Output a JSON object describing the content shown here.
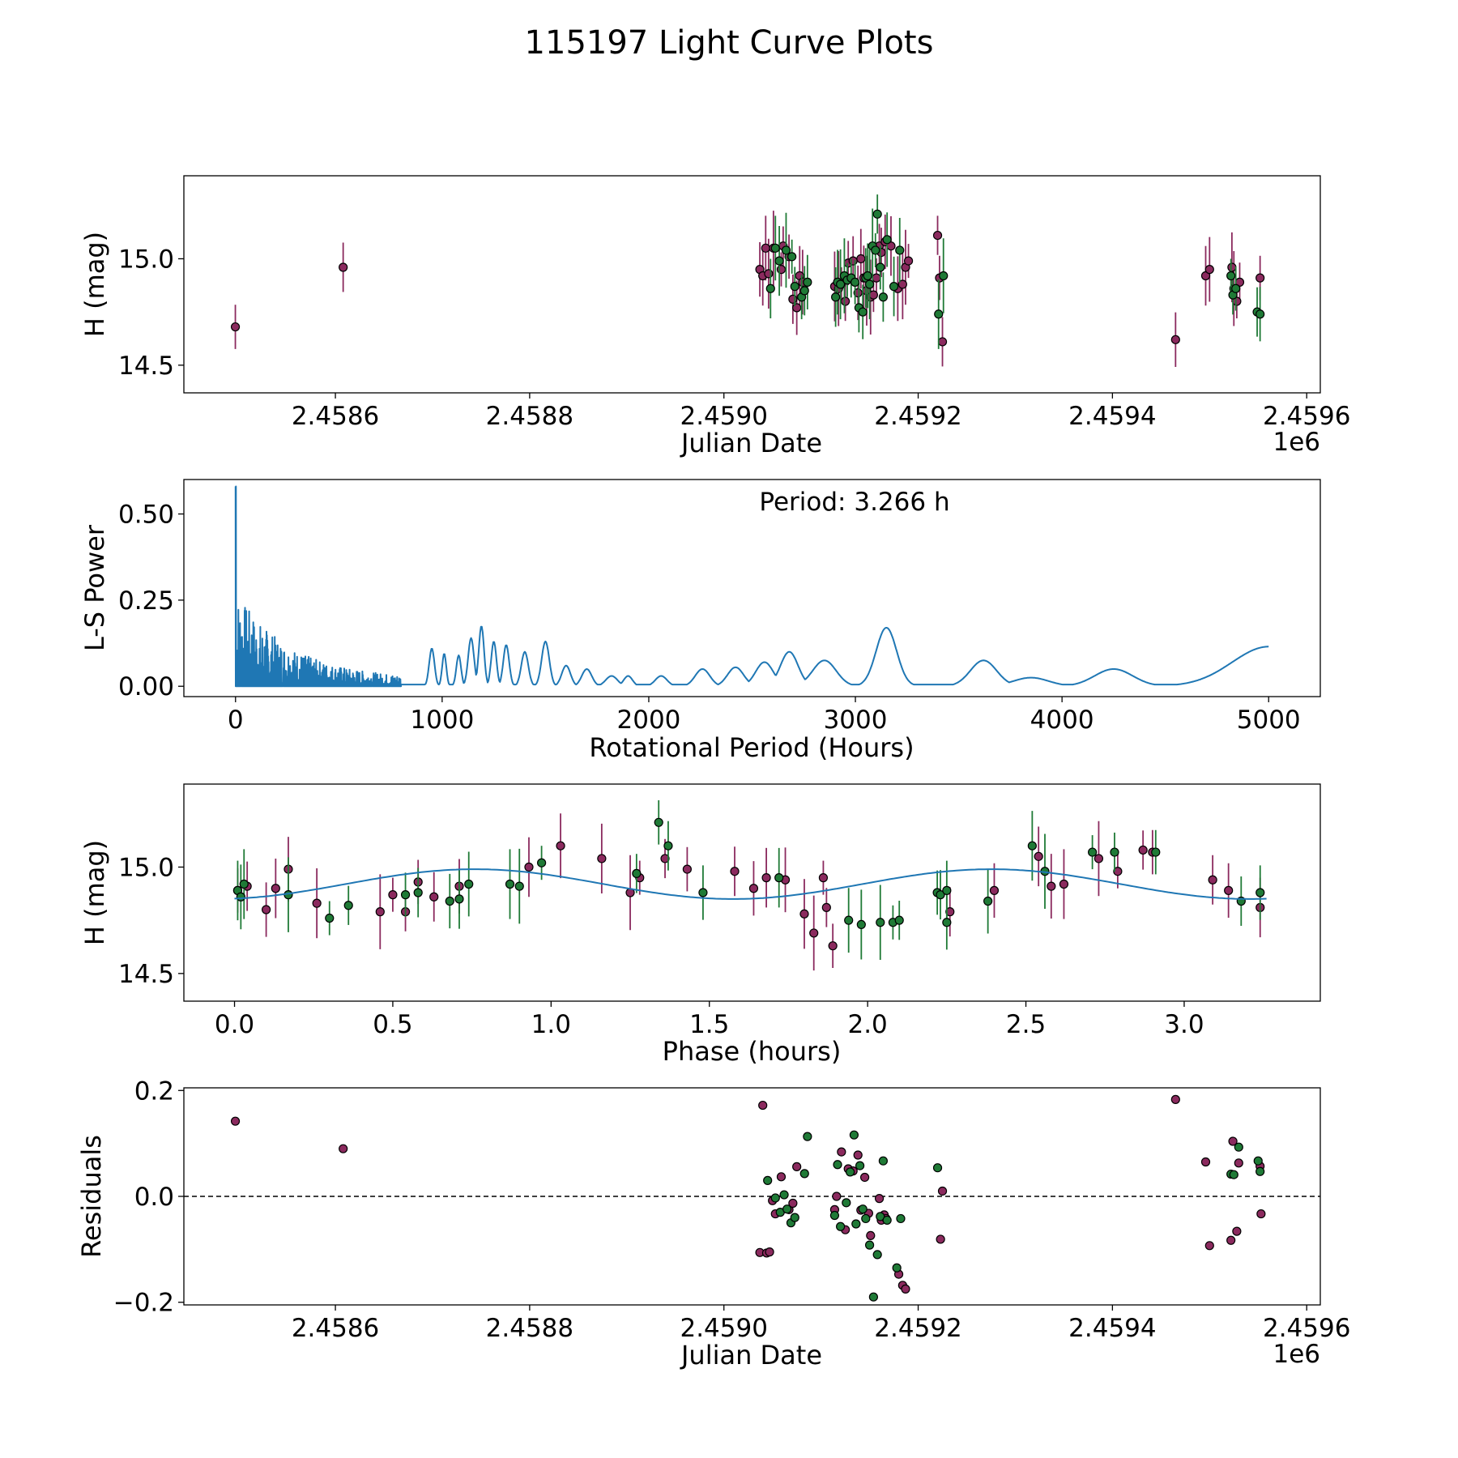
{
  "title": "115197 Light Curve Plots",
  "colors": {
    "class_a": "#8b2a5e",
    "class_b": "#1f7a36",
    "model": "#1f77b4",
    "residual_zero_line": "#000000"
  },
  "chart_data": [
    {
      "id": "lightcurve",
      "type": "scatter",
      "xlabel": "Julian Date",
      "ylabel": "H (mag)",
      "x_offset_label": "1e6",
      "xlim": [
        2458444,
        2459614
      ],
      "ylim": [
        14.37,
        15.39
      ],
      "xticks": [
        2458600,
        2458800,
        2459000,
        2459200,
        2459400,
        2459600
      ],
      "xtick_labels": [
        "2.4586",
        "2.4588",
        "2.4590",
        "2.4592",
        "2.4594",
        "2.4596"
      ],
      "yticks": [
        14.5,
        15.0
      ],
      "ytick_labels": [
        "14.5",
        "15.0"
      ],
      "series": [
        {
          "class": "a",
          "x": [
            2458497,
            2458608,
            2459037,
            2459040,
            2459043,
            2459046,
            2459051,
            2459059,
            2459061,
            2459067,
            2459071,
            2459075,
            2459078,
            2459081,
            2459114,
            2459118,
            2459121,
            2459125,
            2459128,
            2459133,
            2459138,
            2459141,
            2459144,
            2459147,
            2459151,
            2459154,
            2459157,
            2459160,
            2459162,
            2459166,
            2459172,
            2459179,
            2459184,
            2459187,
            2459190,
            2459220,
            2459222,
            2459225,
            2459465,
            2459496,
            2459500,
            2459523,
            2459525,
            2459528,
            2459531,
            2459552
          ],
          "y": [
            14.68,
            14.96,
            14.95,
            14.92,
            15.05,
            14.93,
            15.05,
            14.95,
            15.06,
            15.01,
            14.81,
            14.77,
            14.92,
            14.89,
            14.87,
            14.86,
            14.88,
            14.8,
            14.98,
            14.99,
            14.84,
            15.0,
            14.91,
            14.85,
            14.82,
            14.83,
            14.91,
            15.06,
            15.03,
            15.08,
            15.06,
            14.86,
            14.88,
            14.96,
            14.99,
            15.11,
            14.91,
            14.61,
            14.62,
            14.92,
            14.95,
            14.96,
            14.86,
            14.8,
            14.89,
            14.91
          ]
        },
        {
          "class": "b",
          "x": [
            2459048,
            2459053,
            2459057,
            2459064,
            2459070,
            2459073,
            2459080,
            2459083,
            2459086,
            2459115,
            2459117,
            2459120,
            2459124,
            2459127,
            2459131,
            2459135,
            2459139,
            2459143,
            2459146,
            2459148,
            2459150,
            2459153,
            2459156,
            2459158,
            2459161,
            2459164,
            2459168,
            2459175,
            2459181,
            2459221,
            2459226,
            2459522,
            2459524,
            2459527,
            2459549,
            2459552
          ],
          "y": [
            14.86,
            15.05,
            14.99,
            15.04,
            15.01,
            14.87,
            14.82,
            14.85,
            14.89,
            14.82,
            14.89,
            14.88,
            14.92,
            14.9,
            14.91,
            14.89,
            14.77,
            14.75,
            14.91,
            14.92,
            14.88,
            15.06,
            15.04,
            15.21,
            14.96,
            14.82,
            15.09,
            14.87,
            15.04,
            14.74,
            14.92,
            14.92,
            14.83,
            14.86,
            14.75,
            14.74
          ]
        }
      ]
    },
    {
      "id": "periodogram",
      "type": "line",
      "xlabel": "Rotational Period (Hours)",
      "ylabel": "L-S Power",
      "annotation": "Period: 3.266 h",
      "xlim": [
        -250,
        5250
      ],
      "ylim": [
        -0.03,
        0.6
      ],
      "xticks": [
        0,
        1000,
        2000,
        3000,
        4000,
        5000
      ],
      "xtick_labels": [
        "0",
        "1000",
        "2000",
        "3000",
        "4000",
        "5000"
      ],
      "yticks": [
        0.0,
        0.25,
        0.5
      ],
      "ytick_labels": [
        "0.00",
        "0.25",
        "0.50"
      ],
      "peak_power": 0.58,
      "peaks": [
        [
          3.266,
          0.58
        ],
        [
          3150,
          0.17
        ],
        [
          3620,
          0.075
        ],
        [
          4250,
          0.05
        ],
        [
          5000,
          0.115
        ]
      ]
    },
    {
      "id": "phased",
      "type": "scatter",
      "xlabel": "Phase (hours)",
      "ylabel": "H (mag)",
      "xlim": [
        -0.16,
        3.43
      ],
      "ylim": [
        14.37,
        15.39
      ],
      "xticks": [
        0.0,
        0.5,
        1.0,
        1.5,
        2.0,
        2.5,
        3.0
      ],
      "xtick_labels": [
        "0.0",
        "0.5",
        "1.0",
        "1.5",
        "2.0",
        "2.5",
        "3.0"
      ],
      "yticks": [
        14.5,
        15.0
      ],
      "ytick_labels": [
        "14.5",
        "15.0"
      ],
      "model": {
        "type": "sine",
        "period": 3.266,
        "mean": 14.92,
        "amplitude": 0.07
      },
      "series": [
        {
          "class": "a",
          "x": [
            0.01,
            0.04,
            0.1,
            0.13,
            0.17,
            0.26,
            0.46,
            0.5,
            0.54,
            0.58,
            0.63,
            0.71,
            0.93,
            1.03,
            1.16,
            1.25,
            1.28,
            1.36,
            1.43,
            1.58,
            1.64,
            1.68,
            1.74,
            1.8,
            1.83,
            1.86,
            1.87,
            1.89,
            2.26,
            2.4,
            2.54,
            2.58,
            2.62,
            2.73,
            2.79,
            2.87,
            2.9,
            3.09,
            3.14,
            3.24
          ],
          "y": [
            14.89,
            14.91,
            14.8,
            14.9,
            14.99,
            14.83,
            14.79,
            14.87,
            14.79,
            14.93,
            14.86,
            14.91,
            15.0,
            15.1,
            15.04,
            14.88,
            14.95,
            15.04,
            14.99,
            14.98,
            14.9,
            14.95,
            14.94,
            14.78,
            14.69,
            14.95,
            14.81,
            14.63,
            14.79,
            14.89,
            15.05,
            14.91,
            14.92,
            15.04,
            14.98,
            15.08,
            15.07,
            14.94,
            14.89,
            14.81
          ]
        },
        {
          "class": "b",
          "x": [
            0.01,
            0.02,
            0.03,
            0.17,
            0.3,
            0.36,
            0.54,
            0.58,
            0.68,
            0.71,
            0.74,
            0.87,
            0.9,
            0.97,
            1.27,
            1.34,
            1.37,
            1.48,
            1.72,
            1.94,
            1.98,
            2.04,
            2.08,
            2.1,
            2.22,
            2.23,
            2.25,
            2.25,
            2.38,
            2.52,
            2.56,
            2.71,
            2.78,
            2.91,
            3.18,
            3.24
          ],
          "y": [
            14.89,
            14.86,
            14.92,
            14.87,
            14.76,
            14.82,
            14.87,
            14.88,
            14.84,
            14.85,
            14.92,
            14.92,
            14.91,
            15.02,
            14.97,
            15.21,
            15.1,
            14.88,
            14.95,
            14.75,
            14.73,
            14.74,
            14.74,
            14.75,
            14.88,
            14.87,
            14.74,
            14.89,
            14.84,
            15.1,
            14.98,
            15.07,
            15.07,
            15.07,
            14.84,
            14.88
          ]
        }
      ]
    },
    {
      "id": "residuals",
      "type": "scatter",
      "xlabel": "Julian Date",
      "ylabel": "Residuals",
      "x_offset_label": "1e6",
      "xlim": [
        2458444,
        2459614
      ],
      "ylim": [
        -0.205,
        0.205
      ],
      "xticks": [
        2458600,
        2458800,
        2459000,
        2459200,
        2459400,
        2459600
      ],
      "xtick_labels": [
        "2.4586",
        "2.4588",
        "2.4590",
        "2.4592",
        "2.4594",
        "2.4596"
      ],
      "yticks": [
        -0.2,
        0.0,
        0.2
      ],
      "ytick_labels": [
        "−0.2",
        "0.0",
        "0.2"
      ],
      "zero_line": 0.0,
      "series": [
        {
          "class": "a",
          "x": [
            2458497,
            2458608,
            2459037,
            2459040,
            2459044,
            2459047,
            2459050,
            2459053,
            2459059,
            2459067,
            2459071,
            2459075,
            2459114,
            2459116,
            2459121,
            2459125,
            2459128,
            2459133,
            2459138,
            2459141,
            2459145,
            2459149,
            2459151,
            2459160,
            2459162,
            2459165,
            2459167,
            2459180,
            2459184,
            2459187,
            2459223,
            2459225,
            2459465,
            2459496,
            2459500,
            2459522,
            2459524,
            2459528,
            2459530,
            2459552,
            2459553
          ],
          "y": [
            0.142,
            0.09,
            -0.106,
            0.172,
            -0.107,
            -0.105,
            -0.008,
            -0.033,
            0.037,
            -0.025,
            -0.013,
            0.056,
            -0.025,
            0.0,
            0.084,
            -0.063,
            0.052,
            0.048,
            0.078,
            -0.026,
            0.036,
            -0.032,
            -0.074,
            -0.004,
            -0.045,
            -0.035,
            -0.042,
            -0.147,
            -0.168,
            -0.175,
            -0.081,
            0.01,
            0.183,
            0.065,
            -0.093,
            -0.083,
            0.104,
            -0.066,
            0.063,
            0.057,
            -0.033
          ]
        },
        {
          "class": "b",
          "x": [
            2459045,
            2459053,
            2459058,
            2459062,
            2459065,
            2459069,
            2459073,
            2459083,
            2459086,
            2459114,
            2459117,
            2459120,
            2459126,
            2459130,
            2459134,
            2459136,
            2459140,
            2459143,
            2459146,
            2459150,
            2459154,
            2459158,
            2459161,
            2459164,
            2459168,
            2459178,
            2459182,
            2459220,
            2459522,
            2459525,
            2459530,
            2459550,
            2459552
          ],
          "y": [
            0.03,
            -0.003,
            -0.03,
            0.003,
            -0.024,
            -0.05,
            -0.04,
            0.043,
            0.113,
            -0.036,
            0.06,
            -0.057,
            -0.012,
            0.046,
            0.116,
            -0.052,
            0.058,
            -0.024,
            -0.042,
            -0.092,
            -0.19,
            -0.11,
            -0.038,
            0.067,
            -0.045,
            -0.135,
            -0.042,
            0.054,
            0.042,
            0.041,
            0.093,
            0.067,
            0.047
          ]
        }
      ]
    }
  ]
}
